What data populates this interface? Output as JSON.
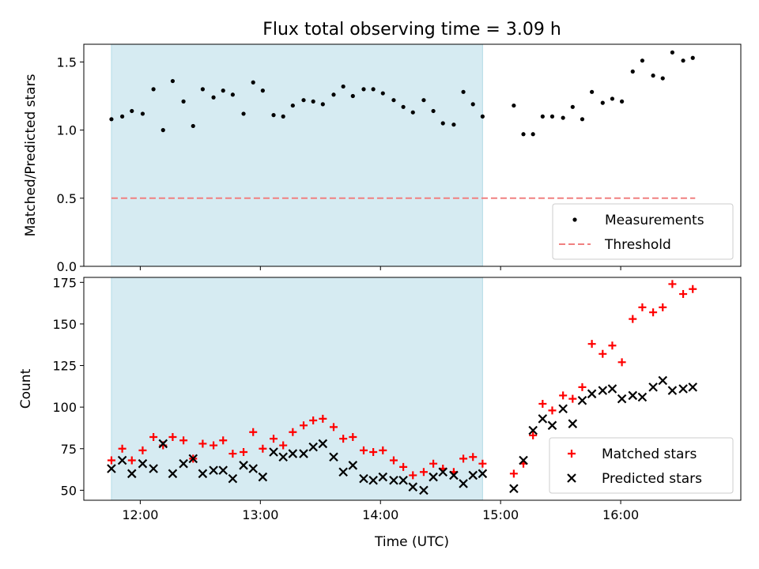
{
  "chart_data": {
    "type": "scatter",
    "title": "Flux total observing time = 3.09 h",
    "xlabel": "Time (UTC)",
    "xlim": [
      11.53,
      17.0
    ],
    "x_ticks": [
      {
        "value": 12,
        "label": "12:00"
      },
      {
        "value": 13,
        "label": "13:00"
      },
      {
        "value": 14,
        "label": "14:00"
      },
      {
        "value": 15,
        "label": "15:00"
      },
      {
        "value": 16,
        "label": "16:00"
      }
    ],
    "shaded_interval": {
      "x_start": 11.76,
      "x_end": 14.85,
      "color": "#add8e6"
    },
    "top": {
      "ylabel": "Matched/Predicted stars",
      "ylim": [
        0,
        1.63
      ],
      "y_ticks": [
        {
          "value": 0.0,
          "label": "0.0"
        },
        {
          "value": 0.5,
          "label": "0.5"
        },
        {
          "value": 1.0,
          "label": "1.0"
        },
        {
          "value": 1.5,
          "label": "1.5"
        }
      ],
      "legend_position": "lower-right",
      "series": [
        {
          "name": "Measurements",
          "marker": "dot",
          "color": "#000000",
          "x": [
            11.76,
            11.85,
            11.93,
            12.02,
            12.11,
            12.19,
            12.27,
            12.36,
            12.44,
            12.52,
            12.61,
            12.69,
            12.77,
            12.86,
            12.94,
            13.02,
            13.11,
            13.19,
            13.27,
            13.36,
            13.44,
            13.52,
            13.61,
            13.69,
            13.77,
            13.86,
            13.94,
            14.02,
            14.11,
            14.19,
            14.27,
            14.36,
            14.44,
            14.52,
            14.61,
            14.69,
            14.77,
            14.85,
            15.11,
            15.19,
            15.27,
            15.35,
            15.43,
            15.52,
            15.6,
            15.68,
            15.76,
            15.85,
            15.93,
            16.01,
            16.1,
            16.18,
            16.27,
            16.35,
            16.43,
            16.52,
            16.6
          ],
          "y": [
            1.08,
            1.1,
            1.14,
            1.12,
            1.3,
            1.0,
            1.36,
            1.21,
            1.03,
            1.3,
            1.24,
            1.29,
            1.26,
            1.12,
            1.35,
            1.29,
            1.11,
            1.1,
            1.18,
            1.22,
            1.21,
            1.19,
            1.26,
            1.32,
            1.25,
            1.3,
            1.3,
            1.27,
            1.22,
            1.17,
            1.13,
            1.22,
            1.14,
            1.05,
            1.04,
            1.28,
            1.19,
            1.1,
            1.18,
            0.97,
            0.97,
            1.1,
            1.1,
            1.09,
            1.17,
            1.08,
            1.28,
            1.2,
            1.23,
            1.21,
            1.43,
            1.51,
            1.4,
            1.38,
            1.57,
            1.51,
            1.53
          ]
        },
        {
          "name": "Threshold",
          "marker": "dashed-line",
          "color": "#f08080",
          "x": [
            11.76,
            16.62
          ],
          "y": [
            0.5,
            0.5
          ]
        }
      ]
    },
    "bottom": {
      "ylabel": "Count",
      "ylim": [
        44,
        178
      ],
      "y_ticks": [
        {
          "value": 50,
          "label": "50"
        },
        {
          "value": 75,
          "label": "75"
        },
        {
          "value": 100,
          "label": "100"
        },
        {
          "value": 125,
          "label": "125"
        },
        {
          "value": 150,
          "label": "150"
        },
        {
          "value": 175,
          "label": "175"
        }
      ],
      "legend_position": "lower-right",
      "series": [
        {
          "name": "Matched stars",
          "marker": "plus",
          "color": "#ff0000",
          "x": [
            11.76,
            11.85,
            11.93,
            12.02,
            12.11,
            12.19,
            12.27,
            12.36,
            12.44,
            12.52,
            12.61,
            12.69,
            12.77,
            12.86,
            12.94,
            13.02,
            13.11,
            13.19,
            13.27,
            13.36,
            13.44,
            13.52,
            13.61,
            13.69,
            13.77,
            13.86,
            13.94,
            14.02,
            14.11,
            14.19,
            14.27,
            14.36,
            14.44,
            14.52,
            14.61,
            14.69,
            14.77,
            14.85,
            15.11,
            15.19,
            15.27,
            15.35,
            15.43,
            15.52,
            15.6,
            15.68,
            15.76,
            15.85,
            15.93,
            16.01,
            16.1,
            16.18,
            16.27,
            16.35,
            16.43,
            16.52,
            16.6
          ],
          "y": [
            68,
            75,
            68,
            74,
            82,
            77,
            82,
            80,
            69,
            78,
            77,
            80,
            72,
            73,
            85,
            75,
            81,
            77,
            85,
            89,
            92,
            93,
            88,
            81,
            82,
            74,
            73,
            74,
            68,
            64,
            59,
            61,
            66,
            63,
            61,
            69,
            70,
            66,
            60,
            66,
            83,
            102,
            98,
            107,
            105,
            112,
            138,
            132,
            137,
            127,
            153,
            160,
            157,
            160,
            174,
            168,
            171
          ]
        },
        {
          "name": "Predicted stars",
          "marker": "x",
          "color": "#000000",
          "x": [
            11.76,
            11.85,
            11.93,
            12.02,
            12.11,
            12.19,
            12.27,
            12.36,
            12.44,
            12.52,
            12.61,
            12.69,
            12.77,
            12.86,
            12.94,
            13.02,
            13.11,
            13.19,
            13.27,
            13.36,
            13.44,
            13.52,
            13.61,
            13.69,
            13.77,
            13.86,
            13.94,
            14.02,
            14.11,
            14.19,
            14.27,
            14.36,
            14.44,
            14.52,
            14.61,
            14.69,
            14.77,
            14.85,
            15.11,
            15.19,
            15.27,
            15.35,
            15.43,
            15.52,
            15.6,
            15.68,
            15.76,
            15.85,
            15.93,
            16.01,
            16.1,
            16.18,
            16.27,
            16.35,
            16.43,
            16.52,
            16.6
          ],
          "y": [
            63,
            68,
            60,
            66,
            63,
            78,
            60,
            66,
            69,
            60,
            62,
            62,
            57,
            65,
            63,
            58,
            73,
            70,
            72,
            72,
            76,
            78,
            70,
            61,
            65,
            57,
            56,
            58,
            56,
            56,
            52,
            50,
            58,
            61,
            59,
            54,
            59,
            60,
            51,
            68,
            86,
            93,
            89,
            99,
            90,
            104,
            108,
            110,
            111,
            105,
            107,
            106,
            112,
            116,
            110,
            111,
            112
          ]
        }
      ]
    }
  }
}
